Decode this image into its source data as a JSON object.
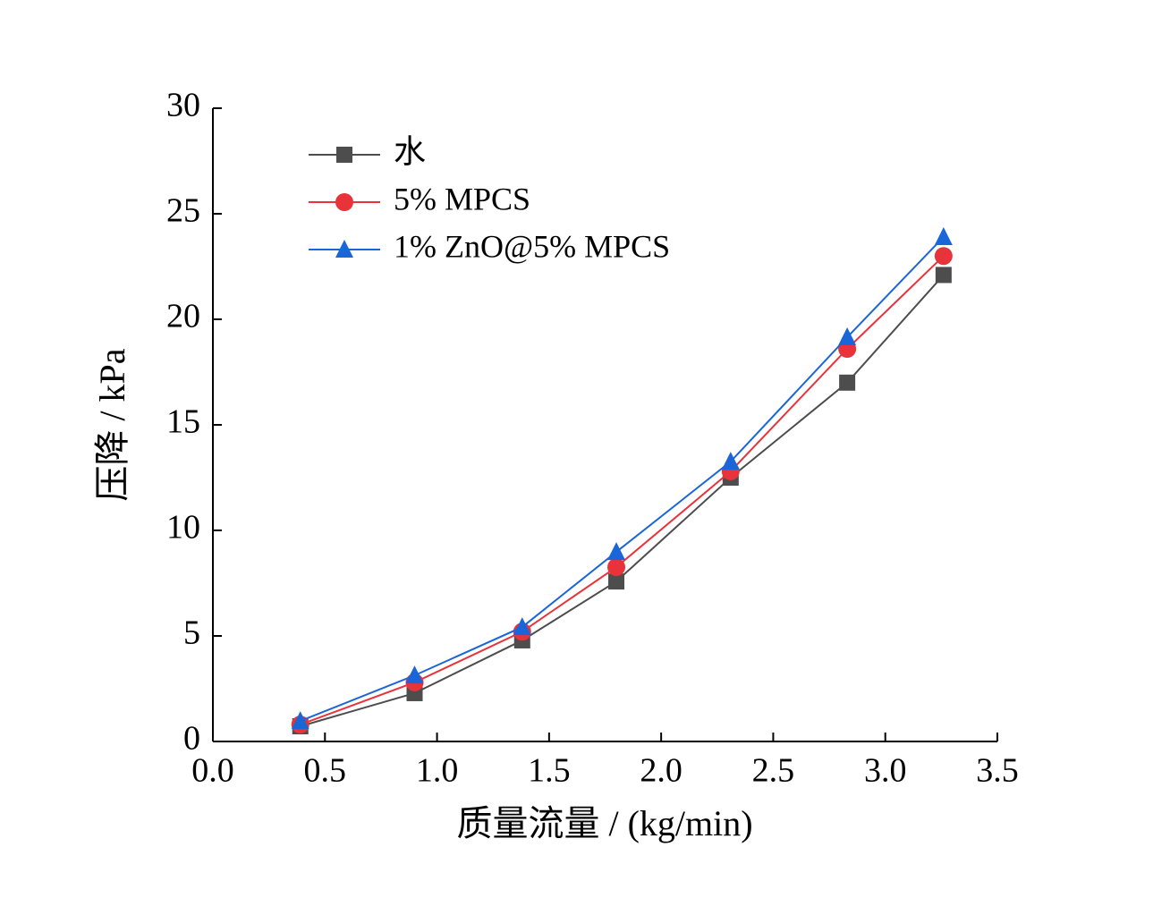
{
  "chart_data": {
    "type": "line",
    "x_label": "质量流量 / (kg/min)",
    "y_label": "压降 / kPa",
    "x": [
      0.39,
      0.9,
      1.38,
      1.8,
      2.31,
      2.83,
      3.26
    ],
    "series": [
      {
        "name": "水",
        "color": "#4d4d4d",
        "marker": "square",
        "values": [
          0.72,
          2.29,
          4.79,
          7.58,
          12.5,
          17.0,
          22.1
        ]
      },
      {
        "name": "5% MPCS",
        "color": "#e8333a",
        "marker": "circle",
        "values": [
          0.8,
          2.8,
          5.2,
          8.26,
          12.8,
          18.6,
          23.0
        ]
      },
      {
        "name": "1% ZnO@5% MPCS",
        "color": "#1a66d9",
        "marker": "triangle",
        "values": [
          0.97,
          3.13,
          5.42,
          8.98,
          13.26,
          19.15,
          23.9
        ]
      }
    ],
    "xlim": [
      0,
      3.5
    ],
    "xticks": [
      {
        "value": 0,
        "label": "0.0"
      },
      0.5,
      {
        "value": 1,
        "label": "1.0"
      },
      1.5,
      {
        "value": 2,
        "label": "2.0"
      },
      2.5,
      {
        "value": 3,
        "label": "3.0"
      },
      3.5
    ],
    "ylim": [
      0,
      30
    ],
    "yticks": [
      0,
      5,
      10,
      15,
      20,
      25,
      30
    ],
    "legend": "upper-left"
  }
}
